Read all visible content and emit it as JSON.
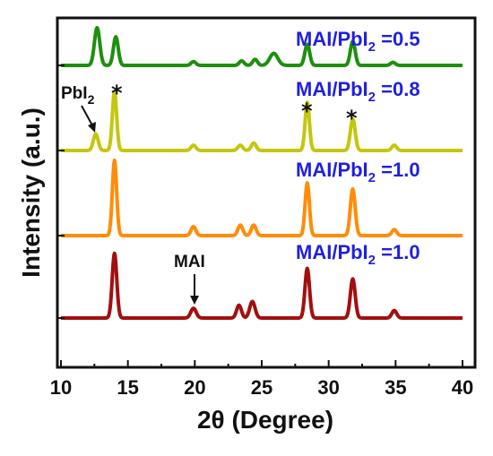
{
  "chart_data": {
    "type": "line",
    "xlabel": "2θ (Degree)",
    "ylabel": "Intensity (a.u.)",
    "xlim": [
      10,
      40
    ],
    "xticks": [
      "10",
      "15",
      "20",
      "25",
      "30",
      "35",
      "40"
    ],
    "series": [
      {
        "label_main": "MAI/PbI",
        "label_sub": "2",
        "label_tail": " =0.5",
        "color": "#1e8f0f",
        "peaks": [
          {
            "x": 12.7,
            "y": 0.5,
            "w": 0.2
          },
          {
            "x": 14.1,
            "y": 0.38,
            "w": 0.18
          },
          {
            "x": 19.9,
            "y": 0.05,
            "w": 0.18
          },
          {
            "x": 23.5,
            "y": 0.06,
            "w": 0.18
          },
          {
            "x": 24.5,
            "y": 0.08,
            "w": 0.18
          },
          {
            "x": 25.9,
            "y": 0.16,
            "w": 0.3
          },
          {
            "x": 28.4,
            "y": 0.28,
            "w": 0.18
          },
          {
            "x": 31.8,
            "y": 0.32,
            "w": 0.18
          },
          {
            "x": 34.8,
            "y": 0.04,
            "w": 0.18
          }
        ]
      },
      {
        "label_main": "MAI/PbI",
        "label_sub": "2",
        "label_tail": " =0.8",
        "color": "#c5c60f",
        "peaks": [
          {
            "x": 12.6,
            "y": 0.22,
            "w": 0.18
          },
          {
            "x": 14.0,
            "y": 0.78,
            "w": 0.16
          },
          {
            "x": 19.9,
            "y": 0.07,
            "w": 0.18
          },
          {
            "x": 23.4,
            "y": 0.07,
            "w": 0.18
          },
          {
            "x": 24.4,
            "y": 0.1,
            "w": 0.18
          },
          {
            "x": 28.4,
            "y": 0.64,
            "w": 0.16
          },
          {
            "x": 31.8,
            "y": 0.42,
            "w": 0.18
          },
          {
            "x": 34.9,
            "y": 0.07,
            "w": 0.18
          }
        ]
      },
      {
        "label_main": "MAI/PbI",
        "label_sub": "2",
        "label_tail": " =1.0",
        "color": "#ff8c0a",
        "peaks": [
          {
            "x": 14.0,
            "y": 1.0,
            "w": 0.16
          },
          {
            "x": 19.9,
            "y": 0.12,
            "w": 0.18
          },
          {
            "x": 23.4,
            "y": 0.14,
            "w": 0.18
          },
          {
            "x": 24.4,
            "y": 0.14,
            "w": 0.18
          },
          {
            "x": 28.4,
            "y": 0.7,
            "w": 0.16
          },
          {
            "x": 31.8,
            "y": 0.62,
            "w": 0.18
          },
          {
            "x": 34.9,
            "y": 0.08,
            "w": 0.18
          }
        ]
      },
      {
        "label_main": "MAI/PbI",
        "label_sub": "2",
        "label_tail": " =1.0",
        "color": "#a30f0f",
        "peaks": [
          {
            "x": 14.0,
            "y": 0.86,
            "w": 0.17
          },
          {
            "x": 19.9,
            "y": 0.13,
            "w": 0.2
          },
          {
            "x": 23.3,
            "y": 0.17,
            "w": 0.18
          },
          {
            "x": 24.3,
            "y": 0.22,
            "w": 0.2
          },
          {
            "x": 28.4,
            "y": 0.66,
            "w": 0.17
          },
          {
            "x": 31.8,
            "y": 0.52,
            "w": 0.18
          },
          {
            "x": 34.9,
            "y": 0.1,
            "w": 0.18
          }
        ]
      }
    ],
    "annotations": [
      {
        "text": "PbI",
        "sub": "2",
        "kind": "arrow-label"
      },
      {
        "text": "MAI",
        "kind": "arrow-label"
      },
      {
        "text": "*",
        "kind": "marker"
      },
      {
        "text": "*",
        "kind": "marker"
      },
      {
        "text": "*",
        "kind": "marker"
      }
    ]
  }
}
